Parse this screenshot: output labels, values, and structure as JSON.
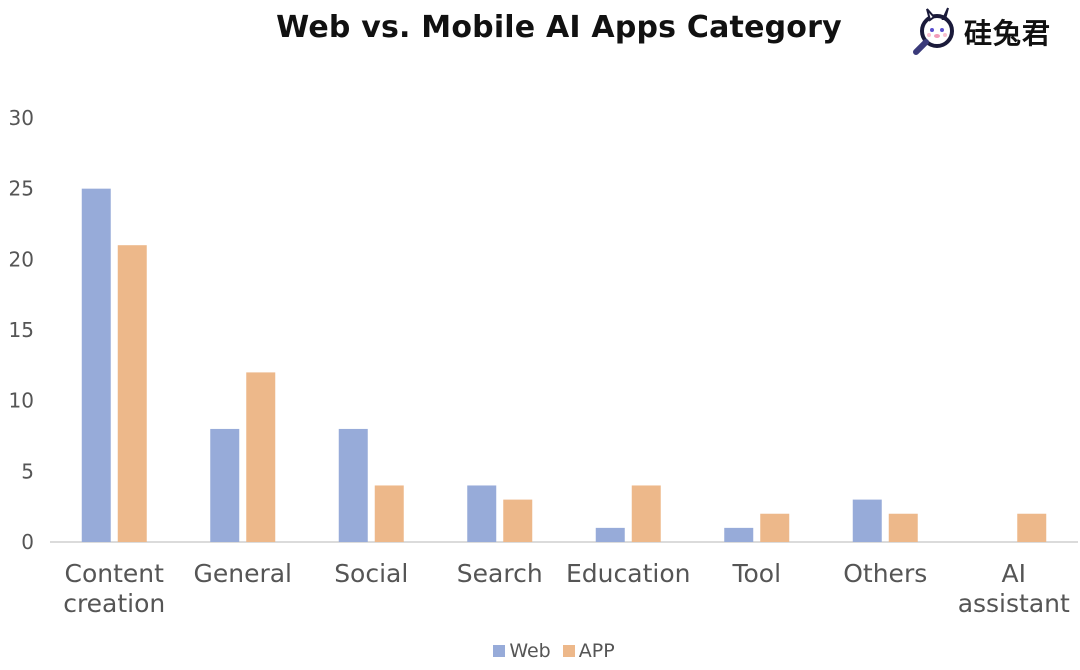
{
  "chart_data": {
    "type": "bar",
    "title": "Web vs. Mobile AI Apps Category",
    "categories": [
      [
        "Content",
        "creation"
      ],
      [
        "General"
      ],
      [
        "Social"
      ],
      [
        "Search"
      ],
      [
        "Education"
      ],
      [
        "Tool"
      ],
      [
        "Others"
      ],
      [
        "AI",
        "assistant"
      ]
    ],
    "series": [
      {
        "name": "Web",
        "color": "#97abd9",
        "values": [
          25,
          8,
          8,
          4,
          1,
          1,
          3,
          0
        ]
      },
      {
        "name": "APP",
        "color": "#edb88a",
        "values": [
          21,
          12,
          4,
          3,
          4,
          2,
          2,
          2
        ]
      }
    ],
    "ylim": [
      0,
      30
    ],
    "yticks": [
      0,
      5,
      10,
      15,
      20,
      25,
      30
    ],
    "xlabel": "",
    "ylabel": "",
    "grid": false,
    "legend_position": "bottom"
  },
  "logo": {
    "text": "硅兔君",
    "icon": "rabbit-magnifier-icon"
  }
}
